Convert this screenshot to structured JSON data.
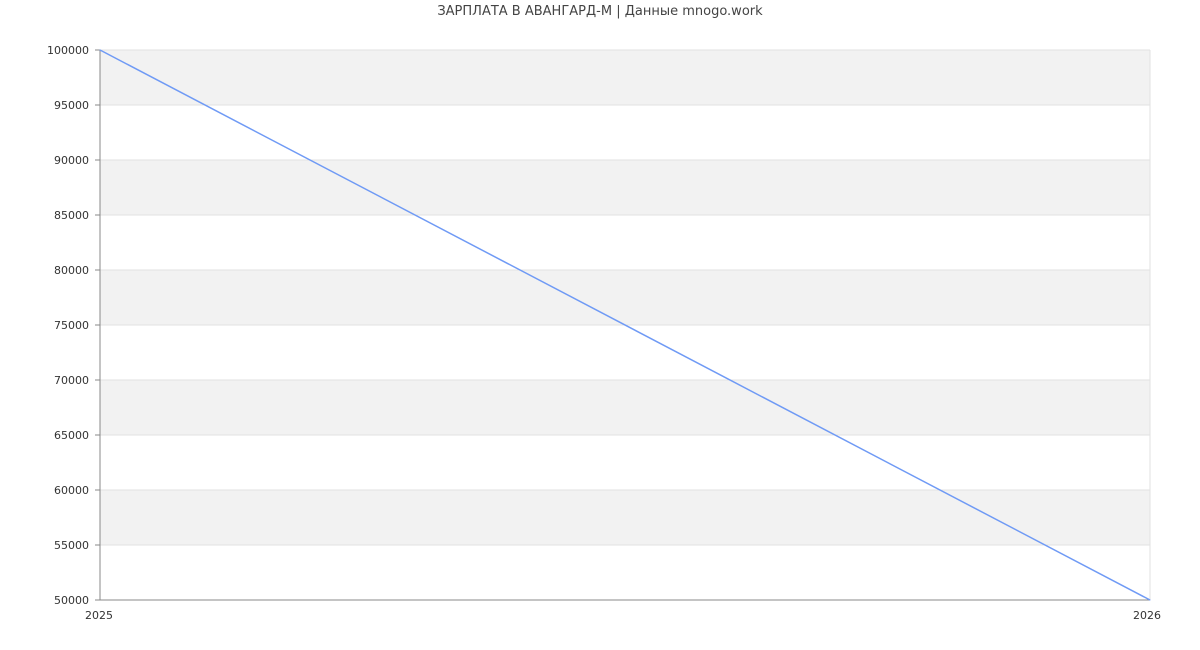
{
  "chart_data": {
    "type": "line",
    "title": "ЗАРПЛАТА В АВАНГАРД-М | Данные mnogo.work",
    "xlabel": "",
    "ylabel": "",
    "x": [
      "2025",
      "2026"
    ],
    "series": [
      {
        "values": [
          100000,
          50000
        ]
      }
    ],
    "ylim": [
      50000,
      100000
    ],
    "yticks": [
      100000,
      95000,
      90000,
      85000,
      80000,
      75000,
      70000,
      65000,
      60000,
      55000,
      50000
    ],
    "grid": true,
    "band_color": "#f2f2f2",
    "line_color": "#6f9af5",
    "legend": "none"
  }
}
